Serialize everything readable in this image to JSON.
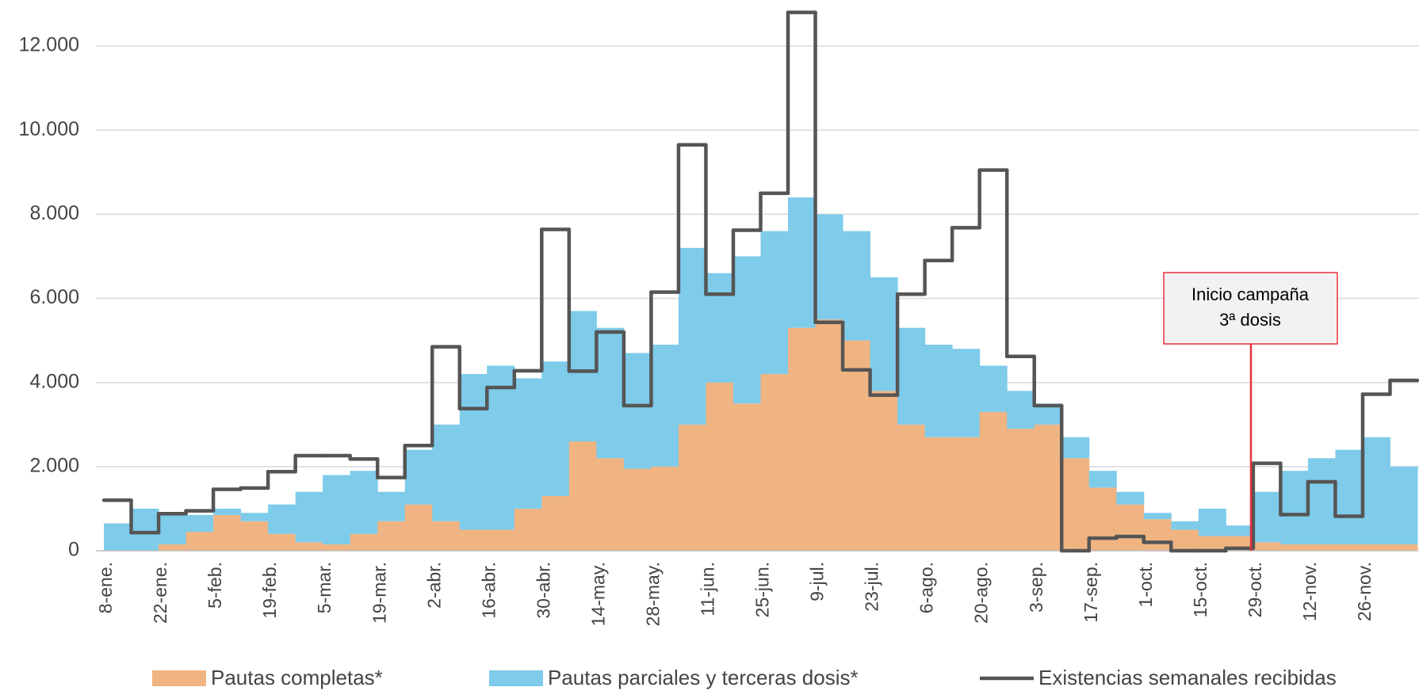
{
  "chart_data": {
    "type": "area",
    "stacked": true,
    "step": true,
    "categories": [
      "8-ene.",
      null,
      "22-ene.",
      null,
      "5-feb.",
      null,
      "19-feb.",
      null,
      "5-mar.",
      null,
      "19-mar.",
      null,
      "2-abr.",
      null,
      "16-abr.",
      null,
      "30-abr.",
      null,
      "14-may.",
      null,
      "28-may.",
      null,
      "11-jun.",
      null,
      "25-jun.",
      null,
      "9-jul.",
      null,
      "23-jul.",
      null,
      "6-ago.",
      null,
      "20-ago.",
      null,
      "3-sep.",
      null,
      "17-sep.",
      null,
      "1-oct.",
      null,
      "15-oct.",
      null,
      "29-oct.",
      null,
      "12-nov.",
      null,
      "26-nov.",
      null
    ],
    "series": [
      {
        "name": "Pautas completas*",
        "color": "#f0b482",
        "values": [
          0,
          0,
          150,
          450,
          850,
          700,
          400,
          200,
          150,
          400,
          700,
          1100,
          700,
          500,
          500,
          1000,
          1300,
          2600,
          2200,
          1950,
          2000,
          3000,
          4000,
          3500,
          4200,
          5300,
          5500,
          5000,
          3800,
          3000,
          2700,
          2700,
          3300,
          2900,
          3000,
          2200,
          1500,
          1100,
          750,
          500,
          350,
          350,
          200,
          150,
          150,
          150,
          150,
          150
        ]
      },
      {
        "name": "Pautas parciales y terceras dosis*",
        "color": "#7ecbea",
        "values": [
          650,
          1000,
          750,
          400,
          150,
          200,
          700,
          1200,
          1650,
          1500,
          700,
          1300,
          2300,
          3700,
          3900,
          3100,
          3200,
          3100,
          3100,
          2750,
          2900,
          4200,
          2600,
          3500,
          3400,
          3100,
          2500,
          2600,
          2700,
          2300,
          2200,
          2100,
          1100,
          900,
          500,
          500,
          400,
          300,
          150,
          200,
          650,
          250,
          1200,
          1750,
          2050,
          2250,
          2550,
          1850
        ]
      },
      {
        "name": "Existencias semanales recibidas",
        "color": "#555555",
        "type": "line",
        "values": [
          1200,
          430,
          880,
          950,
          1460,
          1490,
          1880,
          2260,
          2260,
          2180,
          1740,
          2500,
          4850,
          3380,
          3880,
          4280,
          7640,
          4270,
          5200,
          3450,
          6150,
          9650,
          6100,
          7620,
          8500,
          12800,
          5430,
          4300,
          3700,
          6100,
          6900,
          7680,
          9050,
          4620,
          3450,
          0,
          300,
          340,
          200,
          0,
          0,
          60,
          2080,
          860,
          1640,
          820,
          3720,
          4050
        ]
      }
    ],
    "ylim": [
      0,
      13000
    ],
    "yticks": [
      0,
      {
        "value": 2000,
        "label": "2.000"
      },
      {
        "value": 4000,
        "label": "4.000"
      },
      {
        "value": 6000,
        "label": "6.000"
      },
      {
        "value": 8000,
        "label": "8.000"
      },
      {
        "value": 10000,
        "label": "10.000"
      },
      {
        "value": 12000,
        "label": "12.000"
      }
    ],
    "grid": true,
    "legend": "bottom",
    "annotation": {
      "lines": [
        "Inicio campaña",
        "3ª dosis"
      ],
      "color": "#e8303c"
    }
  }
}
